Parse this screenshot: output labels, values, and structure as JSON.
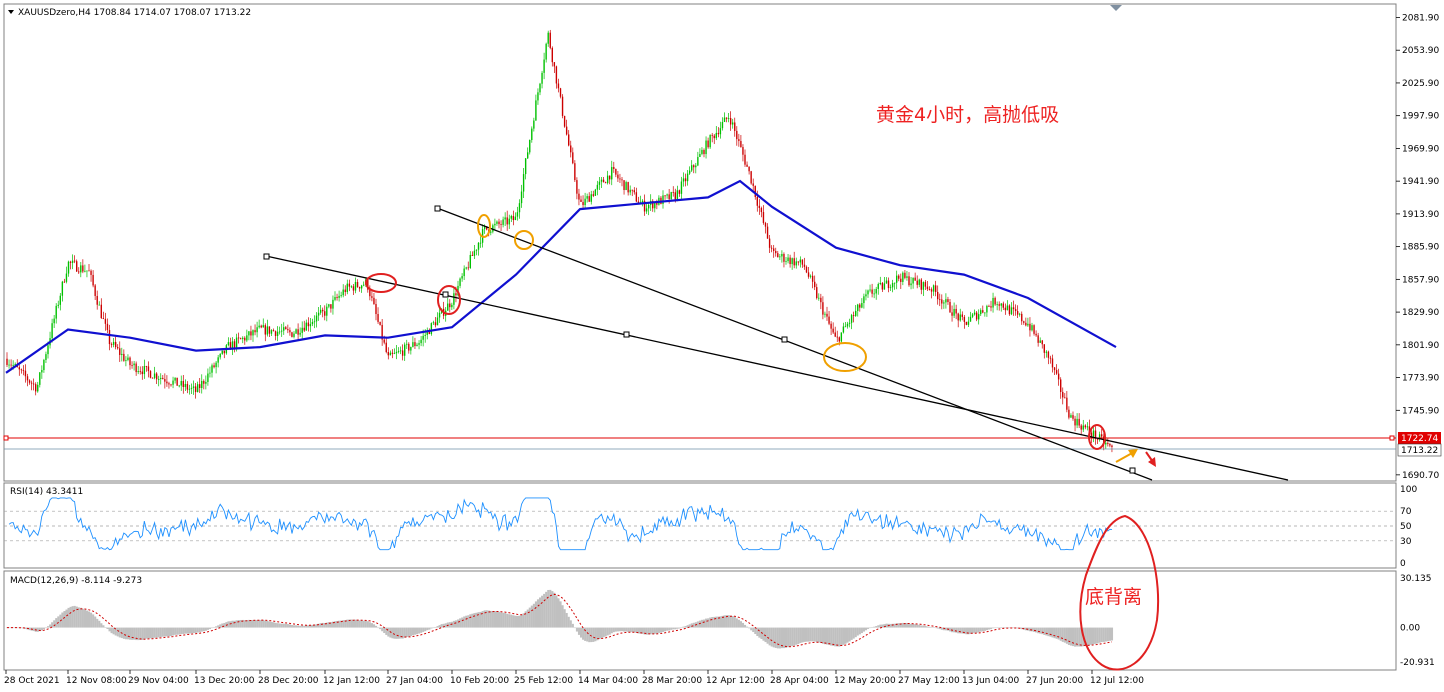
{
  "header": {
    "symbol_line": "XAUUSDzero,H4  1708.84 1714.07 1708.07 1713.22"
  },
  "annotations": {
    "main_note": "黄金4小时，高抛低吸",
    "divergence_note": "底背离"
  },
  "rsi_panel": {
    "label": "RSI(14) 43.3411",
    "ticks": [
      "100",
      "70",
      "50",
      "30",
      "0"
    ]
  },
  "macd_panel": {
    "label": "MACD(12,26,9) -8.114 -9.273",
    "ticks": [
      "30.135",
      "0.00",
      "-20.931"
    ]
  },
  "price_axis": {
    "ticks": [
      "2081.90",
      "2053.90",
      "2025.90",
      "1997.90",
      "1969.90",
      "1941.90",
      "1913.90",
      "1885.90",
      "1857.90",
      "1829.90",
      "1801.90",
      "1773.90",
      "1745.90",
      "1690.70"
    ],
    "level_label": "1722.74",
    "current_label": "1713.22"
  },
  "time_axis": {
    "ticks": [
      "28 Oct 2021",
      "12 Nov 08:00",
      "29 Nov 04:00",
      "13 Dec 20:00",
      "28 Dec 20:00",
      "12 Jan 12:00",
      "27 Jan 04:00",
      "10 Feb 20:00",
      "25 Feb 12:00",
      "14 Mar 04:00",
      "28 Mar 20:00",
      "12 Apr 12:00",
      "28 Apr 04:00",
      "12 May 20:00",
      "27 May 12:00",
      "13 Jun 04:00",
      "27 Jun 20:00",
      "12 Jul 12:00"
    ]
  },
  "colors": {
    "bull": "#00c000",
    "bear": "#cc0000",
    "ma": "#1010d0",
    "rsi": "#1e90ff",
    "macd_hist": "#c0c0c0",
    "signal": "#d00000",
    "level": "#e00000",
    "note": "#ee2222",
    "circle_red": "#e02020",
    "circle_orange": "#f0a000"
  },
  "chart_data": {
    "type": "candlestick",
    "title": "XAUUSDzero,H4",
    "ohlc_last": {
      "open": 1708.84,
      "high": 1714.07,
      "low": 1708.07,
      "close": 1713.22
    },
    "path_points": [
      {
        "x": "28 Oct 2021",
        "y": 1790
      },
      {
        "x": "04 Nov",
        "y": 1765
      },
      {
        "x": "12 Nov 08:00",
        "y": 1872
      },
      {
        "x": "16 Nov",
        "y": 1865
      },
      {
        "x": "22 Nov",
        "y": 1805
      },
      {
        "x": "29 Nov 04:00",
        "y": 1785
      },
      {
        "x": "13 Dec 20:00",
        "y": 1762
      },
      {
        "x": "20 Dec",
        "y": 1800
      },
      {
        "x": "28 Dec 20:00",
        "y": 1815
      },
      {
        "x": "05 Jan",
        "y": 1812
      },
      {
        "x": "12 Jan 12:00",
        "y": 1830
      },
      {
        "x": "20 Jan",
        "y": 1850
      },
      {
        "x": "25 Jan",
        "y": 1855
      },
      {
        "x": "27 Jan 04:00",
        "y": 1790
      },
      {
        "x": "04 Feb",
        "y": 1805
      },
      {
        "x": "10 Feb 20:00",
        "y": 1840
      },
      {
        "x": "18 Feb",
        "y": 1900
      },
      {
        "x": "25 Feb 12:00",
        "y": 1910
      },
      {
        "x": "08 Mar",
        "y": 2068
      },
      {
        "x": "14 Mar 04:00",
        "y": 1920
      },
      {
        "x": "22 Mar",
        "y": 1950
      },
      {
        "x": "28 Mar 20:00",
        "y": 1920
      },
      {
        "x": "05 Apr",
        "y": 1930
      },
      {
        "x": "12 Apr 12:00",
        "y": 1975
      },
      {
        "x": "18 Apr",
        "y": 1998
      },
      {
        "x": "22 Apr",
        "y": 1945
      },
      {
        "x": "28 Apr 04:00",
        "y": 1880
      },
      {
        "x": "05 May",
        "y": 1870
      },
      {
        "x": "12 May 20:00",
        "y": 1805
      },
      {
        "x": "20 May",
        "y": 1845
      },
      {
        "x": "27 May 12:00",
        "y": 1860
      },
      {
        "x": "06 Jun",
        "y": 1850
      },
      {
        "x": "13 Jun 04:00",
        "y": 1820
      },
      {
        "x": "20 Jun",
        "y": 1840
      },
      {
        "x": "27 Jun 20:00",
        "y": 1820
      },
      {
        "x": "05 Jul",
        "y": 1790
      },
      {
        "x": "08 Jul",
        "y": 1740
      },
      {
        "x": "12 Jul 12:00",
        "y": 1713
      }
    ],
    "ma_points": [
      {
        "x": "28 Oct 2021",
        "y": 1778
      },
      {
        "x": "12 Nov 08:00",
        "y": 1815
      },
      {
        "x": "29 Nov 04:00",
        "y": 1808
      },
      {
        "x": "13 Dec 20:00",
        "y": 1797
      },
      {
        "x": "28 Dec 20:00",
        "y": 1800
      },
      {
        "x": "12 Jan 12:00",
        "y": 1810
      },
      {
        "x": "27 Jan 04:00",
        "y": 1808
      },
      {
        "x": "10 Feb 20:00",
        "y": 1817
      },
      {
        "x": "25 Feb 12:00",
        "y": 1862
      },
      {
        "x": "14 Mar 04:00",
        "y": 1918
      },
      {
        "x": "28 Mar 20:00",
        "y": 1923
      },
      {
        "x": "12 Apr 12:00",
        "y": 1928
      },
      {
        "x": "18 Apr",
        "y": 1942
      },
      {
        "x": "28 Apr 04:00",
        "y": 1920
      },
      {
        "x": "12 May 20:00",
        "y": 1885
      },
      {
        "x": "27 May 12:00",
        "y": 1870
      },
      {
        "x": "13 Jun 04:00",
        "y": 1862
      },
      {
        "x": "27 Jun 20:00",
        "y": 1842
      },
      {
        "x": "12 Jul 12:00",
        "y": 1800
      }
    ],
    "horizontal_levels": [
      1722.74,
      1713.22
    ],
    "trendlines": [
      {
        "from": {
          "x": "28 Dec 20:00",
          "y": 1872
        },
        "to": {
          "x": "12 Jul 12:00",
          "y": 1716
        }
      },
      {
        "from": {
          "x": "10 Feb 20:00",
          "y": 1915
        },
        "to": {
          "x": "12 Jul 12:00",
          "y": 1697
        }
      }
    ],
    "price_range": [
      1688,
      2090
    ],
    "rsi": {
      "range": [
        0,
        100
      ],
      "levels": [
        70,
        50,
        30
      ],
      "last": 43.3411
    },
    "macd": {
      "range": [
        -20.931,
        30.135
      ],
      "macd_last": -8.114,
      "signal_last": -9.273
    },
    "grid": false
  }
}
